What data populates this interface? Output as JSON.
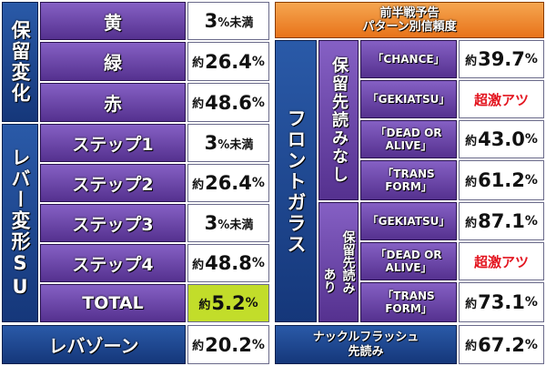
{
  "left": {
    "hold_change": {
      "title": "保留変化",
      "rows": [
        {
          "label": "黄",
          "prefix": "",
          "value": "3",
          "suffix": "%未満"
        },
        {
          "label": "緑",
          "prefix": "約",
          "value": "26.4",
          "suffix": "%"
        },
        {
          "label": "赤",
          "prefix": "約",
          "value": "48.6",
          "suffix": "%"
        }
      ]
    },
    "lever_su": {
      "title": "レバー変形SU",
      "rows": [
        {
          "label": "ステップ1",
          "prefix": "",
          "value": "3",
          "suffix": "%未満"
        },
        {
          "label": "ステップ2",
          "prefix": "約",
          "value": "26.4",
          "suffix": "%"
        },
        {
          "label": "ステップ3",
          "prefix": "",
          "value": "3",
          "suffix": "%未満"
        },
        {
          "label": "ステップ4",
          "prefix": "約",
          "value": "48.8",
          "suffix": "%"
        },
        {
          "label": "TOTAL",
          "prefix": "約",
          "value": "5.2",
          "suffix": "%"
        }
      ]
    },
    "lever_zone": {
      "label": "レバゾーン",
      "prefix": "約",
      "value": "20.2",
      "suffix": "%"
    }
  },
  "right": {
    "header": {
      "line1": "前半戦予告",
      "line2": "パターン別信頼度"
    },
    "front_glass": "フロントガラス",
    "no_hold": {
      "title": "保留先読みなし",
      "rows": [
        {
          "line1": "「CHANCE」",
          "line2": "",
          "prefix": "約",
          "value": "39.7",
          "suffix": "%",
          "special": ""
        },
        {
          "line1": "「GEKIATSU」",
          "line2": "",
          "prefix": "",
          "value": "",
          "suffix": "",
          "special": "超激アツ"
        },
        {
          "line1": "「DEAD OR",
          "line2": "ALIVE」",
          "prefix": "約",
          "value": "43.0",
          "suffix": "%",
          "special": ""
        },
        {
          "line1": "「TRANS",
          "line2": "FORM」",
          "prefix": "約",
          "value": "61.2",
          "suffix": "%",
          "special": ""
        }
      ]
    },
    "with_hold": {
      "title_a": "保留先読み",
      "title_b": "あり",
      "rows": [
        {
          "line1": "「GEKIATSU」",
          "line2": "",
          "prefix": "約",
          "value": "87.1",
          "suffix": "%",
          "special": ""
        },
        {
          "line1": "「DEAD OR",
          "line2": "ALIVE」",
          "prefix": "",
          "value": "",
          "suffix": "",
          "special": "超激アツ"
        },
        {
          "line1": "「TRANS",
          "line2": "FORM」",
          "prefix": "約",
          "value": "73.1",
          "suffix": "%",
          "special": ""
        }
      ]
    },
    "knuckle": {
      "line1": "ナックルフラッシュ",
      "line2": "先読み",
      "prefix": "約",
      "value": "67.2",
      "suffix": "%"
    }
  },
  "colors": {
    "blue": "#1e4796",
    "purple": "#6a44a8",
    "orange": "#ee8a2e",
    "highlight": "#c2dd2a",
    "red": "#e3141e"
  }
}
